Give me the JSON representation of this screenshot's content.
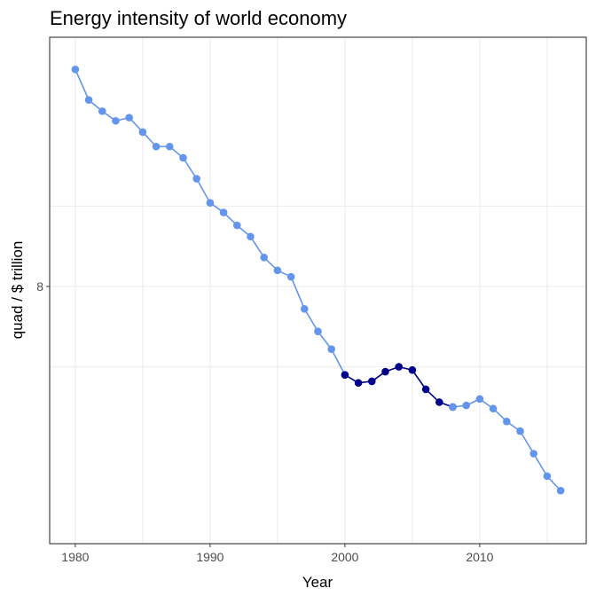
{
  "chart_data": {
    "type": "line",
    "title": "Energy intensity of world economy",
    "xlabel": "Year",
    "ylabel": "quad / $ trillion",
    "x_ticks": [
      1980,
      1990,
      2000,
      2010
    ],
    "y_ticks": [
      8
    ],
    "xlim": [
      1978.1,
      2017.9
    ],
    "ylim": [
      6.4,
      9.55
    ],
    "grid": true,
    "legend": "none",
    "series": [
      {
        "color": "#6495ED",
        "x": [
          1980,
          1981,
          1982,
          1983,
          1984,
          1985,
          1986,
          1987,
          1988,
          1989,
          1990,
          1991,
          1992,
          1993,
          1994,
          1995,
          1996,
          1997,
          1998,
          1999,
          2000
        ],
        "y": [
          9.35,
          9.16,
          9.09,
          9.03,
          9.05,
          8.96,
          8.87,
          8.87,
          8.8,
          8.67,
          8.52,
          8.46,
          8.38,
          8.31,
          8.18,
          8.1,
          8.06,
          7.86,
          7.72,
          7.61,
          7.45
        ]
      },
      {
        "color": "#00008B",
        "x": [
          2000,
          2001,
          2002,
          2003,
          2004,
          2005,
          2006,
          2007,
          2008
        ],
        "y": [
          7.45,
          7.4,
          7.41,
          7.47,
          7.5,
          7.48,
          7.36,
          7.28,
          7.25
        ]
      },
      {
        "color": "#6495ED",
        "x": [
          2008,
          2009,
          2010,
          2011,
          2012,
          2013,
          2014,
          2015,
          2016
        ],
        "y": [
          7.25,
          7.26,
          7.3,
          7.24,
          7.16,
          7.1,
          6.96,
          6.82,
          6.73
        ]
      }
    ]
  }
}
